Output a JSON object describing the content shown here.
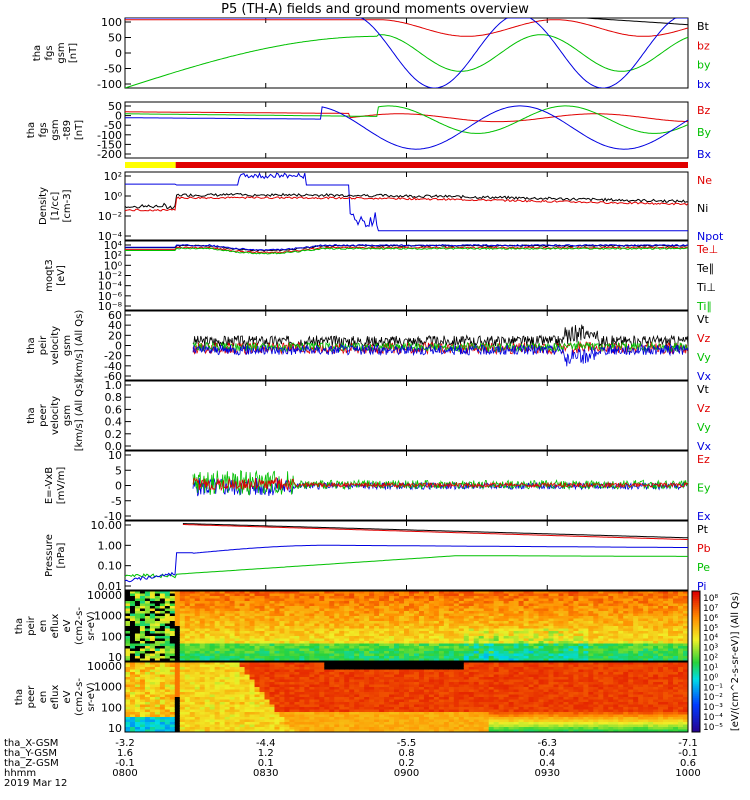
{
  "title": "P5 (TH-A) fields and ground moments overview",
  "colors": {
    "black": "#000000",
    "red": "#e00000",
    "green": "#00c000",
    "blue": "#0000e0",
    "yellow": "#ffff00"
  },
  "chart_data": [
    {
      "type": "line",
      "panel": 1,
      "ylabel": [
        "tha",
        "fgs",
        "gsm",
        "[nT]"
      ],
      "yticks": [
        "100",
        "50",
        "0",
        "-50",
        "-100"
      ],
      "ylim": [
        -100,
        110
      ],
      "legend": [
        {
          "label": "Bt",
          "color": "black"
        },
        {
          "label": "bz",
          "color": "red"
        },
        {
          "label": "by",
          "color": "green"
        },
        {
          "label": "bx",
          "color": "blue"
        }
      ]
    },
    {
      "type": "line",
      "panel": 2,
      "ylabel": [
        "tha",
        "fgs",
        "gsm",
        "-t89",
        "[nT]"
      ],
      "yticks": [
        "50",
        "0",
        "-50",
        "-100",
        "-150",
        "-200"
      ],
      "ylim": [
        -215,
        70
      ],
      "legend": [
        {
          "label": "Bz",
          "color": "red"
        },
        {
          "label": "By",
          "color": "green"
        },
        {
          "label": "Bx",
          "color": "blue"
        }
      ]
    },
    {
      "type": "line",
      "panel": 3,
      "ylabel": [
        "Density",
        "[1/cc]",
        "[cm-3]"
      ],
      "yticks": [
        "10²",
        "10⁰",
        "10⁻²",
        "10⁻⁴"
      ],
      "ylim_log10": [
        -5,
        2.3
      ],
      "legend": [
        {
          "label": "Ne",
          "color": "red"
        },
        {
          "label": "Ni",
          "color": "black"
        },
        {
          "label": "Npot",
          "color": "blue"
        }
      ]
    },
    {
      "type": "line",
      "panel": 4,
      "ylabel": [
        "moqt3",
        "[eV]"
      ],
      "yticks": [
        "10⁴",
        "10²",
        "10⁰",
        "10⁻²",
        "10⁻⁴",
        "10⁻⁶",
        "10⁻⁸"
      ],
      "ylim_log10": [
        -9.5,
        5
      ],
      "legend": [
        {
          "label": "Te⊥",
          "color": "red"
        },
        {
          "label": "Te∥",
          "color": "black"
        },
        {
          "label": "Ti⊥",
          "color": "black"
        },
        {
          "label": "Ti∥",
          "color": "green"
        }
      ]
    },
    {
      "type": "line",
      "panel": 5,
      "ylabel": [
        "tha",
        "peir",
        "velocity",
        "gsm",
        "[km/s] (All Qs)"
      ],
      "yticks": [
        "60",
        "40",
        "20",
        "0",
        "-20",
        "-40",
        "-60"
      ],
      "ylim": [
        -62,
        62
      ],
      "legend": [
        {
          "label": "Vt",
          "color": "black"
        },
        {
          "label": "Vz",
          "color": "red"
        },
        {
          "label": "Vy",
          "color": "green"
        },
        {
          "label": "Vx",
          "color": "blue"
        }
      ]
    },
    {
      "type": "line",
      "panel": 6,
      "ylabel": [
        "tha",
        "peer",
        "velocity",
        "gsm",
        "[km/s] (All Qs)"
      ],
      "yticks": [
        "1.0",
        "0.8",
        "0.6",
        "0.4",
        "0.2",
        "0.0"
      ],
      "ylim": [
        0,
        1
      ],
      "legend": [
        {
          "label": "Vt",
          "color": "black"
        },
        {
          "label": "Vz",
          "color": "red"
        },
        {
          "label": "Vy",
          "color": "green"
        },
        {
          "label": "Vx",
          "color": "blue"
        }
      ]
    },
    {
      "type": "line",
      "panel": 7,
      "ylabel": [
        "E=-VxB",
        "[mV/m]"
      ],
      "yticks": [
        "10",
        "5",
        "0",
        "-5",
        "-10"
      ],
      "ylim": [
        -11,
        11
      ],
      "legend": [
        {
          "label": "Ez",
          "color": "red"
        },
        {
          "label": "Ey",
          "color": "green"
        },
        {
          "label": "Ex",
          "color": "blue"
        }
      ]
    },
    {
      "type": "line",
      "panel": 8,
      "ylabel": [
        "Pressure",
        "[nPa]"
      ],
      "yticks": [
        "10.00",
        "1.00",
        "0.10",
        "0.01"
      ],
      "ylim_log10": [
        -2.4,
        1.5
      ],
      "legend": [
        {
          "label": "Pt",
          "color": "black"
        },
        {
          "label": "Pb",
          "color": "red"
        },
        {
          "label": "Pe",
          "color": "green"
        },
        {
          "label": "Pi",
          "color": "blue"
        }
      ]
    },
    {
      "type": "heatmap",
      "panel": 9,
      "ylabel": [
        "tha",
        "peir",
        "en",
        "eflux",
        "eV",
        "(cm2-s-",
        "sr-eV)"
      ],
      "yticks": [
        "10000",
        "1000",
        "100",
        "10"
      ]
    },
    {
      "type": "heatmap",
      "panel": 10,
      "ylabel": [
        "tha",
        "peer",
        "en",
        "eflux",
        "eV",
        "(cm2-s-",
        "sr-eV)"
      ],
      "yticks": [
        "10000",
        "1000",
        "100",
        "10"
      ]
    }
  ],
  "colorbar": {
    "label": "[eV/(cm^2-s-sr-eV)] (All Qs)",
    "ticks": [
      "10⁸",
      "10⁷",
      "10⁶",
      "10⁵",
      "10⁴",
      "10³",
      "10²",
      "10¹",
      "10⁰",
      "10⁻¹",
      "10⁻²",
      "10⁻³",
      "10⁻⁴",
      "10⁻⁵"
    ]
  },
  "xaxis": {
    "ticks": [
      {
        "time": "0800",
        "x_gsm": "-3.2",
        "y_gsm": "1.6",
        "z_gsm": "-0.1"
      },
      {
        "time": "0830",
        "x_gsm": "-4.4",
        "y_gsm": "1.2",
        "z_gsm": "0.1"
      },
      {
        "time": "0900",
        "x_gsm": "-5.5",
        "y_gsm": "0.8",
        "z_gsm": "0.2"
      },
      {
        "time": "0930",
        "x_gsm": "-6.3",
        "y_gsm": "0.4",
        "z_gsm": "0.4"
      },
      {
        "time": "1000",
        "x_gsm": "-7.1",
        "y_gsm": "-0.1",
        "z_gsm": "0.6"
      }
    ],
    "row_labels": [
      "tha_X-GSM",
      "tha_Y-GSM",
      "tha_Z-GSM",
      "hhmm"
    ],
    "date": "2019 Mar 12"
  },
  "spin_bar": {
    "segments": [
      {
        "color": "yellow",
        "from": "0800",
        "to": "0808"
      },
      {
        "color": "red",
        "from": "0808",
        "to": "1000"
      }
    ]
  }
}
